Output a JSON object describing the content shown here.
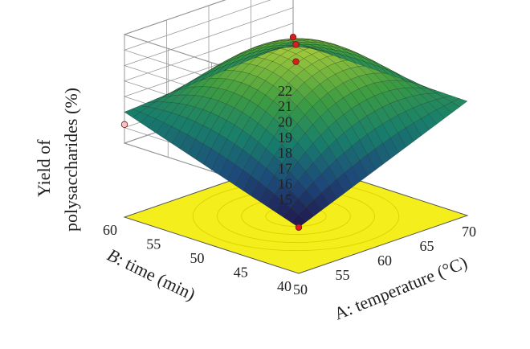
{
  "chart_data": {
    "type": "surface3d",
    "title": "",
    "x_axis": {
      "label_prefix": "A",
      "label_text": ": temperature (",
      "label_unit": "°C)",
      "ticks": [
        50,
        55,
        60,
        65,
        70
      ],
      "range": [
        50,
        70
      ]
    },
    "y_axis": {
      "label_prefix": "B",
      "label_text": ": time (min)",
      "ticks": [
        40,
        45,
        50,
        55,
        60
      ],
      "range": [
        40,
        60
      ]
    },
    "z_axis": {
      "label_line1": "Yield of",
      "label_line2": "polysaccharides (%)",
      "ticks": [
        15,
        16,
        17,
        18,
        19,
        20,
        21,
        22
      ],
      "range": [
        15,
        22
      ]
    },
    "surface_model": {
      "peak_temperature": 60,
      "peak_time": 50,
      "peak_yield": 20.7,
      "min_yield": 13.2,
      "corner_yields": {
        "temp50_time40": 13.2,
        "temp50_time60": 17.0,
        "temp70_time40": 17.6,
        "temp70_time60": 17.8
      }
    },
    "design_points": [
      {
        "temperature": 60,
        "time": 50,
        "yield": 21.3
      },
      {
        "temperature": 60,
        "time": 50,
        "yield": 20.2
      },
      {
        "temperature": 70,
        "time": 60,
        "yield": 18.1
      },
      {
        "temperature": 50,
        "time": 60,
        "yield": 16.2
      },
      {
        "temperature": 50,
        "time": 40,
        "yield": 13.2
      }
    ],
    "colors": {
      "floor_contour": "#f4ef1c",
      "point_fill": "#d42020",
      "colormap": [
        "#3b2a8c",
        "#2b6fb8",
        "#1fa38a",
        "#45b04a",
        "#9cc63a"
      ]
    }
  }
}
